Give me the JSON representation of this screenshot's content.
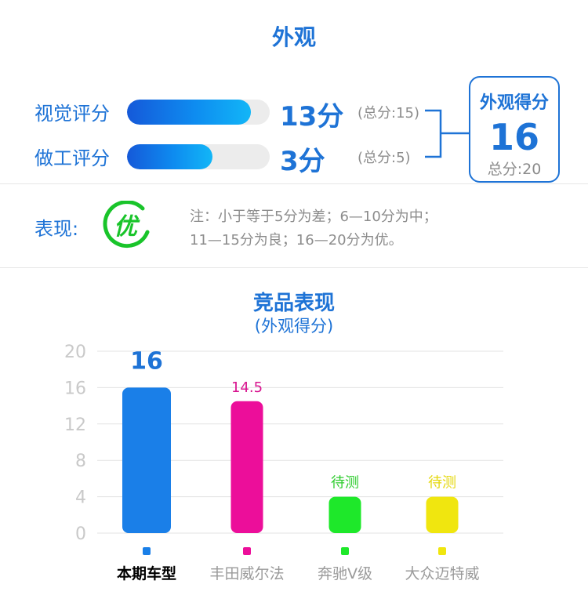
{
  "header": {
    "title": "外观"
  },
  "ratings": [
    {
      "label": "视觉评分",
      "score_text": "13分",
      "total_text": "(总分:15)",
      "score": 13,
      "max": 15
    },
    {
      "label": "做工评分",
      "score_text": "3分",
      "total_text": "(总分:5)",
      "score": 3,
      "max": 5
    }
  ],
  "summary": {
    "title": "外观得分",
    "score": "16",
    "total": "总分:20"
  },
  "performance": {
    "label": "表现:",
    "grade": "优",
    "grade_color": "#19c42a",
    "note_line1": "注：小于等于5分为差；6—10分为中；",
    "note_line2": "11—15分为良；16—20分为优。"
  },
  "colors": {
    "accent": "#1e73d6",
    "muted": "#8c8c8c"
  },
  "chart_data": {
    "type": "bar",
    "title": "竞品表现",
    "subtitle": "(外观得分)",
    "ylim": [
      0,
      20
    ],
    "yticks": [
      0,
      4,
      8,
      12,
      16,
      20
    ],
    "grid": true,
    "categories": [
      "本期车型",
      "丰田威尔法",
      "奔驰V级",
      "大众迈特威"
    ],
    "values": [
      16,
      14.5,
      null,
      null
    ],
    "display_heights": [
      16,
      14.5,
      4,
      4
    ],
    "data_labels": [
      "16",
      "14.5",
      "待测",
      "待测"
    ],
    "colors": [
      "#1a7fe8",
      "#ec0e9a",
      "#1ee82a",
      "#f0e60f"
    ],
    "label_colors": [
      "#1e73d6",
      "#d8148f",
      "#2fcc2f",
      "#e5d80e"
    ],
    "highlight_category": "本期车型"
  }
}
